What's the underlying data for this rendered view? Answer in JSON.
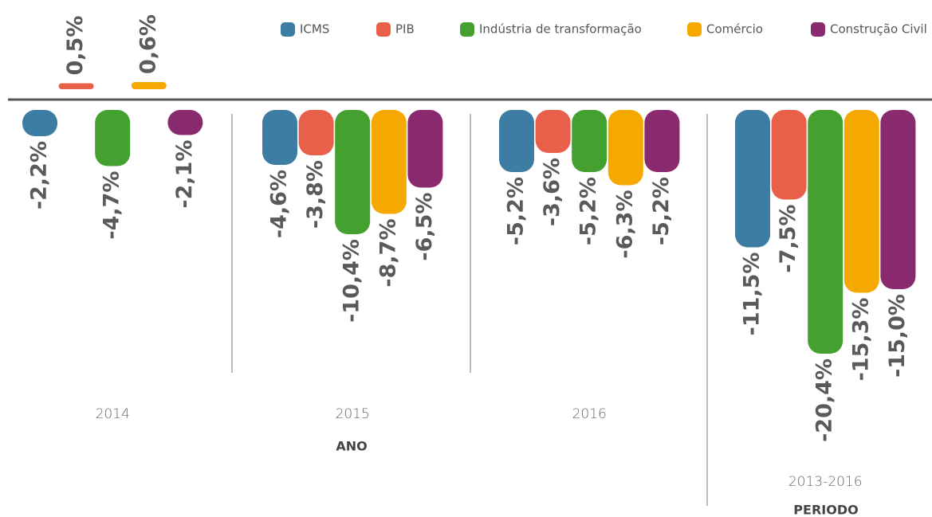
{
  "chart_data": {
    "type": "bar",
    "categories": [
      "2014",
      "2015",
      "2016",
      "2013-2016"
    ],
    "group_labels": [
      "ANO",
      "PERIODO"
    ],
    "series": [
      {
        "name": "ICMS",
        "color": "#3d7ca3",
        "values": [
          -2.2,
          -4.6,
          -5.2,
          -11.5
        ],
        "value_labels": [
          "-2,2%",
          "-4,6%",
          "-5,2%",
          "-11,5%"
        ]
      },
      {
        "name": "PIB",
        "color": "#e8604a",
        "values": [
          0.5,
          -3.8,
          -3.6,
          -7.5
        ],
        "value_labels": [
          "0,5%",
          "-3,8%",
          "-3,6%",
          "-7,5%"
        ]
      },
      {
        "name": "Indústria de transformação",
        "color": "#44a12f",
        "values": [
          -4.7,
          -10.4,
          -5.2,
          -20.4
        ],
        "value_labels": [
          "-4,7%",
          "-10,4%",
          "-5,2%",
          "-20,4%"
        ]
      },
      {
        "name": "Comércio",
        "color": "#f5a800",
        "values": [
          0.6,
          -8.7,
          -6.3,
          -15.3
        ],
        "value_labels": [
          "0,6%",
          "-8,7%",
          "-6,3%",
          "-15,3%"
        ]
      },
      {
        "name": "Construção Civil",
        "color": "#8a2a6e",
        "values": [
          -2.1,
          -6.5,
          -5.2,
          -15.0
        ],
        "value_labels": [
          "-2,1%",
          "-6,5%",
          "-5,2%",
          "-15,0%"
        ]
      }
    ]
  }
}
